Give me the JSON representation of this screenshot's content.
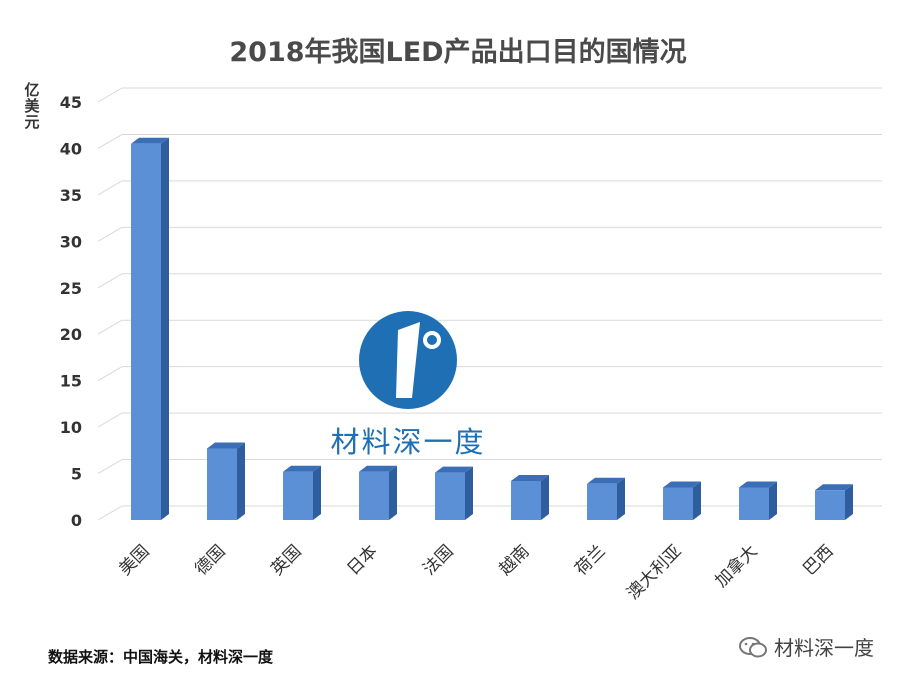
{
  "chart_data": {
    "type": "bar",
    "title": "2018年我国LED产品出口目的国情况",
    "ylabel": "亿美元",
    "xlabel": "",
    "categories": [
      "美国",
      "德国",
      "英国",
      "日本",
      "法国",
      "越南",
      "荷兰",
      "澳大利亚",
      "加拿大",
      "巴西"
    ],
    "values": [
      40.5,
      7.7,
      5.2,
      5.2,
      5.1,
      4.2,
      3.9,
      3.5,
      3.5,
      3.2
    ],
    "ylim": [
      0,
      45
    ],
    "yticks": [
      0,
      5,
      10,
      15,
      20,
      25,
      30,
      35,
      40,
      45
    ],
    "grid": true,
    "bar_color": "#5b8fd6",
    "style": "3d-column"
  },
  "watermark": {
    "text": "材料深一度",
    "logo": "1°",
    "color": "#1f6fb5"
  },
  "source": "数据来源：中国海关，材料深一度",
  "wechat_account": "材料深一度"
}
